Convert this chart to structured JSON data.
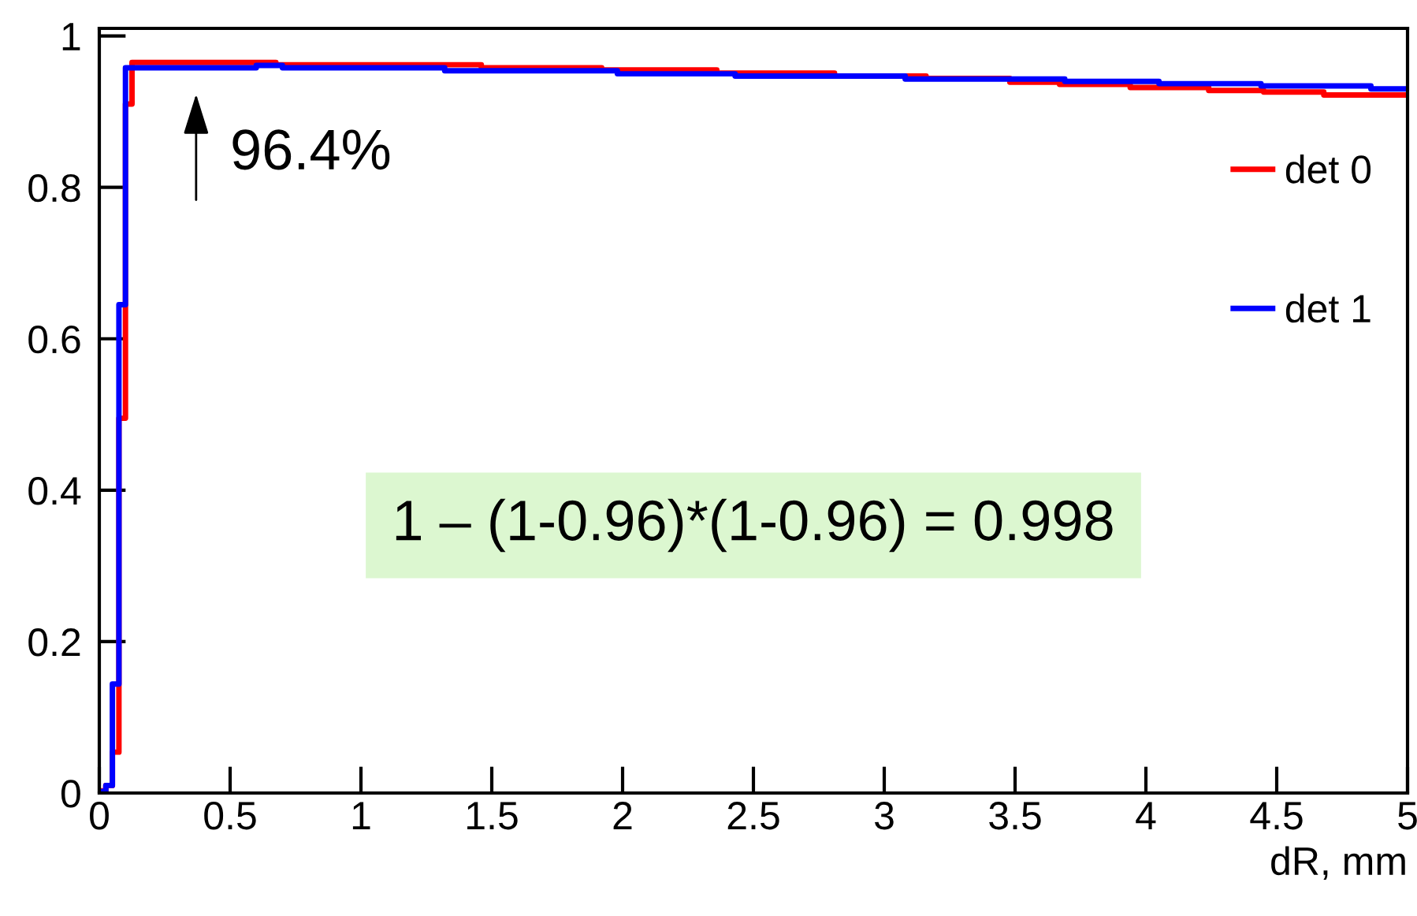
{
  "chart_data": {
    "type": "step",
    "xlabel": "dR, mm",
    "xlim": [
      0,
      5
    ],
    "ylim": [
      0,
      1.01
    ],
    "xticks": [
      0,
      0.5,
      1,
      1.5,
      2,
      2.5,
      3,
      3.5,
      4,
      4.5,
      5
    ],
    "yticks": [
      0,
      0.2,
      0.4,
      0.6,
      0.8,
      1
    ],
    "legend": "right",
    "grid": false,
    "annotations": [
      "96.4%",
      "1 – (1-0.96)*(1-0.96) = 0.998"
    ],
    "series": [
      {
        "name": "det 0",
        "color": "#ff0000",
        "x": [
          0,
          0.025,
          0.05,
          0.075,
          0.1,
          0.125,
          0.675,
          1.46,
          1.92,
          2.36,
          2.81,
          3.16,
          3.48,
          3.67,
          3.94,
          4.24,
          4.45,
          4.68,
          5
        ],
        "values": [
          0.003,
          0.01,
          0.054,
          0.495,
          0.91,
          0.965,
          0.962,
          0.958,
          0.955,
          0.951,
          0.947,
          0.944,
          0.939,
          0.936,
          0.932,
          0.928,
          0.926,
          0.922,
          0.922
        ]
      },
      {
        "name": "det 1",
        "color": "#0000ff",
        "x": [
          0,
          0.025,
          0.05,
          0.075,
          0.1,
          0.6,
          0.7,
          1.32,
          1.98,
          2.43,
          3.08,
          3.69,
          4.05,
          4.44,
          4.86,
          5
        ],
        "values": [
          0.002,
          0.01,
          0.144,
          0.645,
          0.958,
          0.961,
          0.958,
          0.954,
          0.95,
          0.947,
          0.943,
          0.94,
          0.937,
          0.934,
          0.93,
          0.93
        ]
      }
    ]
  }
}
